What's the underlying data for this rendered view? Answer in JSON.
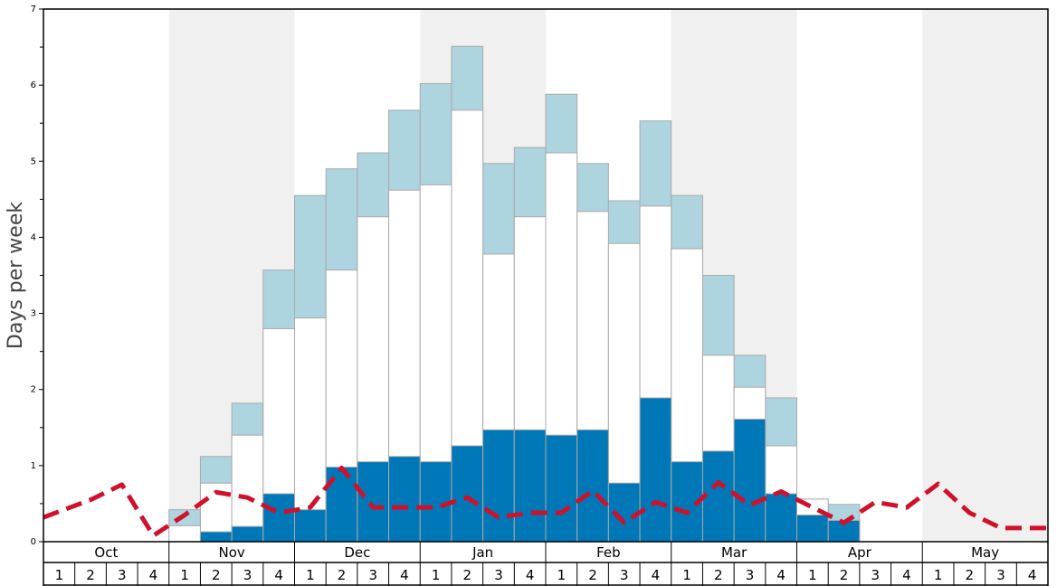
{
  "chart_data": {
    "type": "bar",
    "ylabel": "Days per week",
    "ylim": [
      0,
      7
    ],
    "yticks": [
      0,
      1,
      2,
      3,
      4,
      5,
      6,
      7
    ],
    "months": [
      "Oct",
      "Nov",
      "Dec",
      "Jan",
      "Feb",
      "Mar",
      "Apr",
      "May"
    ],
    "week_labels": [
      "1",
      "2",
      "3",
      "4"
    ],
    "shaded_months": [
      "Nov",
      "Jan",
      "Mar",
      "May"
    ],
    "colors": {
      "dark": "#0077b6",
      "white": "#ffffff",
      "light": "#aed4e0",
      "line": "#d0112b",
      "shade": "#f0f0f0",
      "bar_edge": "#aaaaaa"
    },
    "series": [
      {
        "values": [
          0,
          0,
          0,
          0,
          0,
          0.13,
          0.2,
          0.63,
          0.42,
          0.98,
          1.05,
          1.12,
          1.05,
          1.26,
          1.47,
          1.47,
          1.4,
          1.47,
          0.77,
          1.89,
          1.05,
          1.19,
          1.61,
          0.63,
          0.35,
          0.28,
          0,
          0,
          0,
          0,
          0,
          0
        ]
      },
      {
        "values": [
          0,
          0,
          0,
          0,
          0.21,
          0.77,
          1.4,
          2.8,
          2.94,
          3.57,
          4.27,
          4.62,
          4.69,
          5.67,
          3.78,
          4.27,
          5.11,
          4.34,
          3.92,
          4.41,
          3.85,
          2.45,
          2.03,
          1.26,
          0.56,
          0.28,
          0,
          0,
          0,
          0,
          0,
          0
        ]
      },
      {
        "values": [
          0,
          0,
          0,
          0,
          0.42,
          1.12,
          1.82,
          3.57,
          4.55,
          4.9,
          5.11,
          5.67,
          6.02,
          6.51,
          4.97,
          5.18,
          5.88,
          4.97,
          4.48,
          5.53,
          4.55,
          3.5,
          2.45,
          1.89,
          0.56,
          0.49,
          0,
          0,
          0,
          0,
          0,
          0
        ]
      },
      {
        "type": "line",
        "style": "dashed",
        "values": [
          0.32,
          0.55,
          0.75,
          0.08,
          0.35,
          0.65,
          0.58,
          0.38,
          0.45,
          0.97,
          0.45,
          0.45,
          0.45,
          0.58,
          0.32,
          0.38,
          0.38,
          0.67,
          0.25,
          0.52,
          0.38,
          0.78,
          0.48,
          0.66,
          0.45,
          0.25,
          0.52,
          0.45,
          0.76,
          0.38,
          0.18,
          0.18
        ]
      }
    ]
  }
}
